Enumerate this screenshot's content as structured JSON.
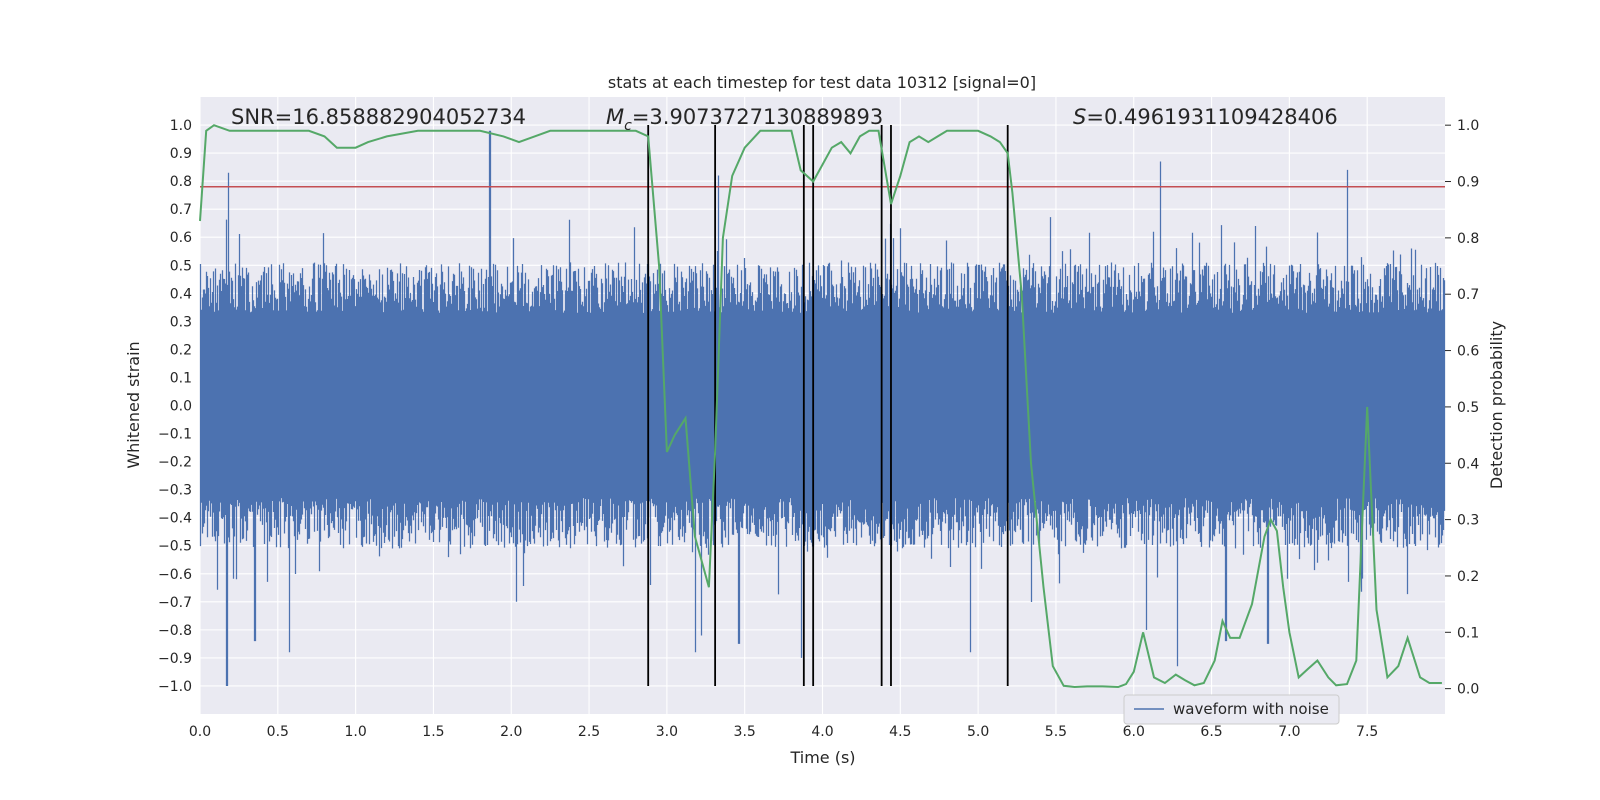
{
  "chart_data": {
    "type": "line",
    "title": "stats at each timestep for test data 10312 [signal=0]",
    "xlabel": "Time (s)",
    "ylabel": "Whitened strain",
    "y2label": "Detection probability",
    "xlim": [
      0.0,
      8.0
    ],
    "ylim": [
      -1.1,
      1.1
    ],
    "y2lim": [
      -0.045,
      1.05
    ],
    "xticks": [
      "0.0",
      "0.5",
      "1.0",
      "1.5",
      "2.0",
      "2.5",
      "3.0",
      "3.5",
      "4.0",
      "4.5",
      "5.0",
      "5.5",
      "6.0",
      "6.5",
      "7.0",
      "7.5"
    ],
    "yticks": [
      "1.0",
      "0.9",
      "0.8",
      "0.7",
      "0.6",
      "0.5",
      "0.4",
      "0.3",
      "0.2",
      "0.1",
      "0.0",
      "−0.1",
      "−0.2",
      "−0.3",
      "−0.4",
      "−0.5",
      "−0.6",
      "−0.7",
      "−0.8",
      "−0.9",
      "−1.0"
    ],
    "y2ticks": [
      "1.0",
      "0.9",
      "0.8",
      "0.7",
      "0.6",
      "0.5",
      "0.4",
      "0.3",
      "0.2",
      "0.1",
      "0.0"
    ],
    "annotations": {
      "snr": "SNR=16.858882904052734",
      "mc_symbol": "M",
      "mc_sub": "c",
      "mc_value": "=3.9073727130889893",
      "s_symbol": "S",
      "s_value": "=0.4961931109428406"
    },
    "threshold_line": {
      "y": 0.78,
      "color": "#c44e52"
    },
    "vertical_lines": [
      2.88,
      3.31,
      3.88,
      3.94,
      4.38,
      4.44,
      5.19
    ],
    "vertical_line_range": [
      -1.0,
      1.0
    ],
    "legend": {
      "label": "waveform with noise",
      "position": "lower-right"
    },
    "series": [
      {
        "name": "waveform with noise",
        "axis": "left",
        "color": "#4c72b0",
        "seed": 10312,
        "typical_amplitude": 0.38,
        "spikes": [
          [
            0.18,
            0.83
          ],
          [
            0.17,
            -1.0
          ],
          [
            1.86,
            0.98
          ],
          [
            6.17,
            0.87
          ],
          [
            7.37,
            0.84
          ],
          [
            7.5,
            0.45
          ],
          [
            0.35,
            -0.84
          ],
          [
            0.57,
            -0.88
          ],
          [
            3.18,
            -0.88
          ],
          [
            3.86,
            -0.9
          ],
          [
            4.95,
            -0.88
          ],
          [
            6.28,
            -0.93
          ],
          [
            6.59,
            -0.84
          ],
          [
            6.86,
            -0.85
          ],
          [
            6.08,
            -0.8
          ],
          [
            2.89,
            -0.64
          ],
          [
            3.33,
            0.82
          ],
          [
            3.22,
            -0.82
          ],
          [
            3.46,
            -0.85
          ]
        ]
      },
      {
        "name": "Detection probability",
        "axis": "right",
        "color": "#55a868",
        "x": [
          0.0,
          0.04,
          0.09,
          0.19,
          0.3,
          0.4,
          0.5,
          0.6,
          0.7,
          0.8,
          0.88,
          0.95,
          1.0,
          1.08,
          1.2,
          1.4,
          1.6,
          1.8,
          1.95,
          2.05,
          2.15,
          2.25,
          2.5,
          2.8,
          2.88,
          2.95,
          3.0,
          3.05,
          3.12,
          3.18,
          3.27,
          3.31,
          3.36,
          3.42,
          3.5,
          3.6,
          3.7,
          3.8,
          3.86,
          3.94,
          4.0,
          4.06,
          4.12,
          4.18,
          4.24,
          4.3,
          4.36,
          4.44,
          4.5,
          4.56,
          4.62,
          4.68,
          4.74,
          4.8,
          4.9,
          5.0,
          5.08,
          5.14,
          5.19,
          5.22,
          5.28,
          5.34,
          5.42,
          5.48,
          5.55,
          5.62,
          5.7,
          5.8,
          5.9,
          5.95,
          6.0,
          6.06,
          6.13,
          6.2,
          6.27,
          6.33,
          6.39,
          6.45,
          6.52,
          6.57,
          6.62,
          6.68,
          6.76,
          6.84,
          6.88,
          6.92,
          6.96,
          7.0,
          7.06,
          7.12,
          7.18,
          7.25,
          7.3,
          7.37,
          7.43,
          7.5,
          7.56,
          7.63,
          7.7,
          7.76,
          7.84,
          7.9,
          7.98
        ],
        "y": [
          0.83,
          0.99,
          1.0,
          0.99,
          0.99,
          0.99,
          0.99,
          0.99,
          0.99,
          0.98,
          0.96,
          0.96,
          0.96,
          0.97,
          0.98,
          0.99,
          0.99,
          0.99,
          0.98,
          0.97,
          0.98,
          0.99,
          0.99,
          0.99,
          0.98,
          0.75,
          0.42,
          0.45,
          0.48,
          0.27,
          0.18,
          0.42,
          0.8,
          0.91,
          0.96,
          0.99,
          0.99,
          0.99,
          0.92,
          0.9,
          0.93,
          0.96,
          0.97,
          0.95,
          0.98,
          0.99,
          0.99,
          0.86,
          0.91,
          0.97,
          0.98,
          0.97,
          0.98,
          0.99,
          0.99,
          0.99,
          0.98,
          0.97,
          0.95,
          0.88,
          0.7,
          0.4,
          0.18,
          0.04,
          0.005,
          0.003,
          0.004,
          0.004,
          0.003,
          0.008,
          0.03,
          0.1,
          0.02,
          0.01,
          0.025,
          0.015,
          0.006,
          0.01,
          0.05,
          0.12,
          0.09,
          0.09,
          0.15,
          0.27,
          0.3,
          0.28,
          0.18,
          0.1,
          0.02,
          0.035,
          0.05,
          0.02,
          0.006,
          0.008,
          0.05,
          0.5,
          0.14,
          0.02,
          0.04,
          0.09,
          0.02,
          0.01,
          0.01
        ]
      }
    ]
  }
}
